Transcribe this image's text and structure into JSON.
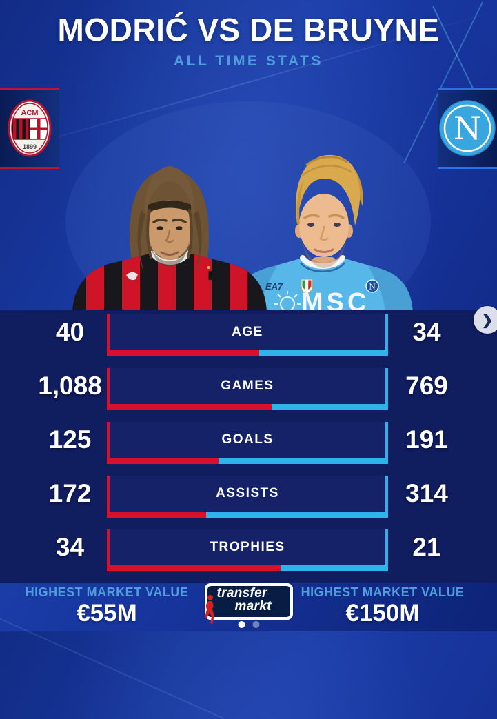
{
  "header": {
    "title": "MODRIĆ VS DE BRUYNE",
    "subtitle": "ALL TIME STATS"
  },
  "badges": {
    "milan": {
      "acronym": "ACM",
      "year": "1899"
    },
    "napoli": {
      "letter": "N"
    }
  },
  "hero": {
    "right_kit_brand": "EA7",
    "right_kit_sponsor": "MSC"
  },
  "nav": {
    "next": "❯"
  },
  "stats": {
    "rows": [
      {
        "label": "AGE",
        "left": "40",
        "right": "34",
        "left_num": 40,
        "right_num": 34
      },
      {
        "label": "GAMES",
        "left": "1,088",
        "right": "769",
        "left_num": 1088,
        "right_num": 769
      },
      {
        "label": "GOALS",
        "left": "125",
        "right": "191",
        "left_num": 125,
        "right_num": 191
      },
      {
        "label": "ASSISTS",
        "left": "172",
        "right": "314",
        "left_num": 172,
        "right_num": 314
      },
      {
        "label": "TROPHIES",
        "left": "34",
        "right": "21",
        "left_num": 34,
        "right_num": 21
      }
    ]
  },
  "footer": {
    "left": {
      "label": "HIGHEST MARKET VALUE",
      "value": "€55M"
    },
    "right": {
      "label": "HIGHEST MARKET VALUE",
      "value": "€150M"
    },
    "brand": {
      "line1": "transfer",
      "line2": "markt"
    },
    "dots_count": 2
  },
  "colors": {
    "red": "#d8102e",
    "blue": "#2db4ea",
    "subtitle_blue": "#4e9edc",
    "background_blue": "#16339a",
    "panel_navy": "#101d5f"
  },
  "chart_data": {
    "type": "bar",
    "title": "MODRIĆ VS DE BRUYNE",
    "subtitle": "ALL TIME STATS",
    "categories": [
      "AGE",
      "GAMES",
      "GOALS",
      "ASSISTS",
      "TROPHIES"
    ],
    "series": [
      {
        "name": "Modrić (AC Milan)",
        "color": "#d8102e",
        "values": [
          40,
          1088,
          125,
          172,
          34
        ]
      },
      {
        "name": "De Bruyne (Napoli)",
        "color": "#2db4ea",
        "values": [
          34,
          769,
          191,
          314,
          21
        ]
      }
    ],
    "value_labels_left": [
      "40",
      "1,088",
      "125",
      "172",
      "34"
    ],
    "value_labels_right": [
      "34",
      "769",
      "191",
      "314",
      "21"
    ],
    "bar_style": "proportional split, left share = left/(left+right)",
    "annotations": {
      "highest_market_value_left": "€55M",
      "highest_market_value_right": "€150M"
    },
    "legend_position": "none",
    "grid": false
  }
}
